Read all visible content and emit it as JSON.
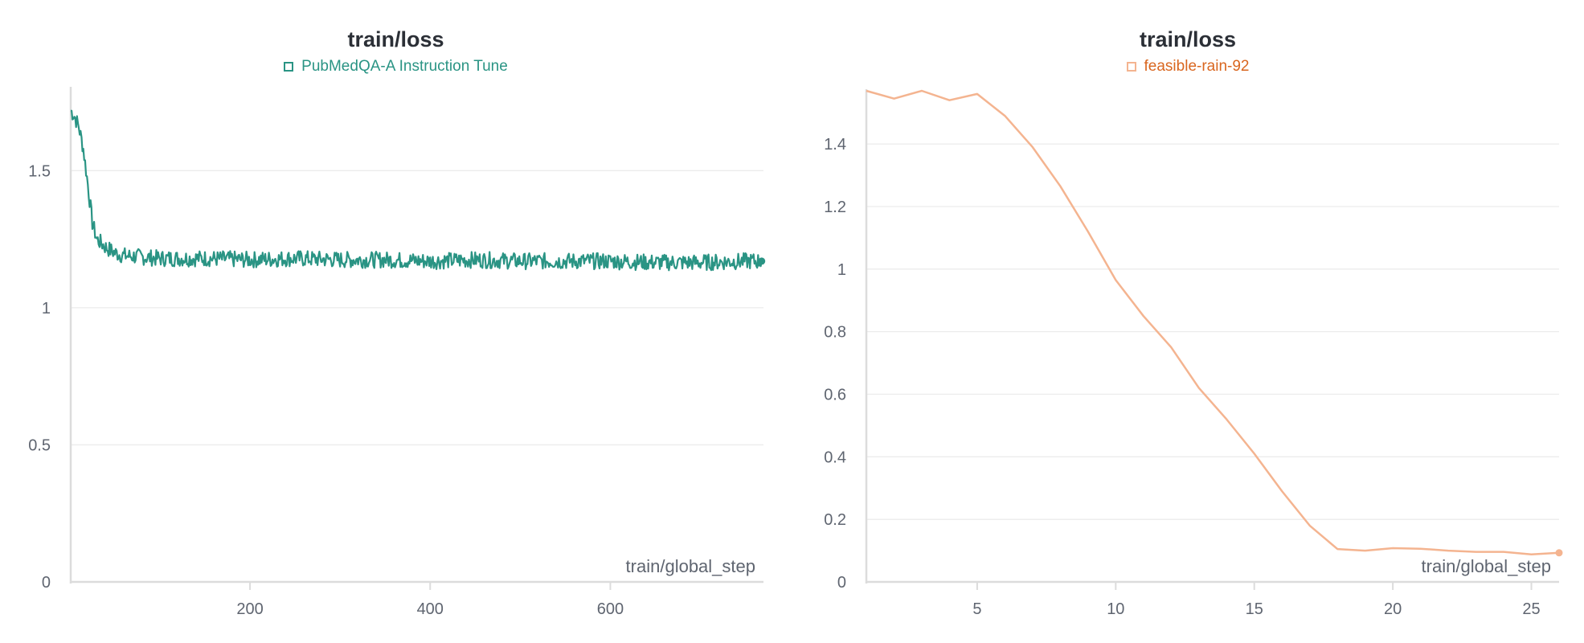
{
  "charts": [
    {
      "title": "train/loss",
      "legend": "PubMedQA-A Instruction Tune",
      "xlabel": "train/global_step",
      "color": "#2a9484"
    },
    {
      "title": "train/loss",
      "legend": "feasible-rain-92",
      "xlabel": "train/global_step",
      "color": "#f4b490",
      "legend_text_color": "#d9661f"
    }
  ],
  "chart_data": [
    {
      "type": "line",
      "title": "train/loss",
      "xlabel": "train/global_step",
      "ylabel": "",
      "xlim": [
        1,
        770
      ],
      "ylim": [
        0,
        1.8
      ],
      "xticks": [
        200,
        400,
        600
      ],
      "yticks": [
        0,
        0.5,
        1,
        1.5
      ],
      "ytick_labels": [
        "0",
        "0.5",
        "1",
        "1.5"
      ],
      "grid": true,
      "series": [
        {
          "name": "PubMedQA-A Instruction Tune",
          "x": [
            1,
            5,
            10,
            15,
            20,
            25,
            30,
            40,
            50,
            60,
            80,
            100,
            150,
            200,
            250,
            300,
            350,
            400,
            450,
            500,
            550,
            600,
            650,
            700,
            750,
            768
          ],
          "y": [
            1.72,
            1.7,
            1.66,
            1.58,
            1.45,
            1.31,
            1.25,
            1.22,
            1.2,
            1.19,
            1.185,
            1.18,
            1.18,
            1.175,
            1.18,
            1.175,
            1.175,
            1.17,
            1.175,
            1.17,
            1.17,
            1.17,
            1.165,
            1.165,
            1.17,
            1.17
          ]
        }
      ]
    },
    {
      "type": "line",
      "title": "train/loss",
      "xlabel": "train/global_step",
      "ylabel": "",
      "xlim": [
        1,
        26
      ],
      "ylim": [
        0,
        1.57
      ],
      "xticks": [
        5,
        10,
        15,
        20,
        25
      ],
      "yticks": [
        0,
        0.2,
        0.4,
        0.6,
        0.8,
        1,
        1.2,
        1.4
      ],
      "ytick_labels": [
        "0",
        "0.2",
        "0.4",
        "0.6",
        "0.8",
        "1",
        "1.2",
        "1.4"
      ],
      "grid": true,
      "series": [
        {
          "name": "feasible-rain-92",
          "x": [
            1,
            2,
            3,
            4,
            5,
            6,
            7,
            8,
            9,
            10,
            11,
            12,
            13,
            14,
            15,
            16,
            17,
            18,
            19,
            20,
            21,
            22,
            23,
            24,
            25,
            26
          ],
          "y": [
            1.57,
            1.545,
            1.57,
            1.54,
            1.56,
            1.49,
            1.39,
            1.265,
            1.12,
            0.965,
            0.85,
            0.75,
            0.62,
            0.52,
            0.41,
            0.29,
            0.18,
            0.105,
            0.1,
            0.108,
            0.106,
            0.1,
            0.096,
            0.096,
            0.088,
            0.093
          ]
        }
      ]
    }
  ]
}
